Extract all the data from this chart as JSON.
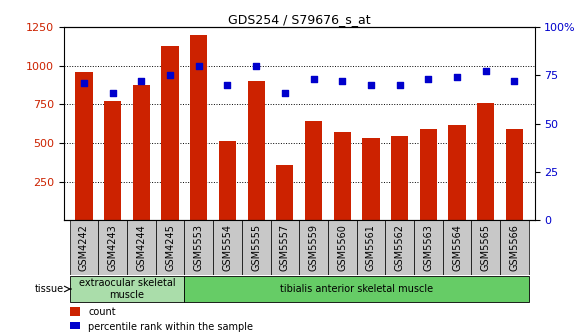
{
  "title": "GDS254 / S79676_s_at",
  "categories": [
    "GSM4242",
    "GSM4243",
    "GSM4244",
    "GSM4245",
    "GSM5553",
    "GSM5554",
    "GSM5555",
    "GSM5557",
    "GSM5559",
    "GSM5560",
    "GSM5561",
    "GSM5562",
    "GSM5563",
    "GSM5564",
    "GSM5565",
    "GSM5566"
  ],
  "counts": [
    960,
    770,
    875,
    1125,
    1200,
    510,
    900,
    360,
    645,
    570,
    530,
    545,
    590,
    615,
    760,
    590
  ],
  "percentiles": [
    71,
    66,
    72,
    75,
    80,
    70,
    80,
    66,
    73,
    72,
    70,
    70,
    73,
    74,
    77,
    72
  ],
  "bar_color": "#cc2200",
  "dot_color": "#0000cc",
  "plot_bg": "#ffffff",
  "xtick_bg": "#c8c8c8",
  "left_ylim": [
    0,
    1250
  ],
  "left_yticks": [
    250,
    500,
    750,
    1000,
    1250
  ],
  "right_ylim": [
    0,
    100
  ],
  "right_yticks": [
    0,
    25,
    50,
    75,
    100
  ],
  "right_yticklabels": [
    "0",
    "25",
    "50",
    "75",
    "100%"
  ],
  "tissue_groups": [
    {
      "label": "extraocular skeletal\nmuscle",
      "start": 0,
      "end": 4,
      "color": "#aaddaa"
    },
    {
      "label": "tibialis anterior skeletal muscle",
      "start": 4,
      "end": 16,
      "color": "#66cc66"
    }
  ],
  "tissue_label": "tissue",
  "legend_items": [
    {
      "label": "count",
      "color": "#cc2200"
    },
    {
      "label": "percentile rank within the sample",
      "color": "#0000cc"
    }
  ],
  "title_fontsize": 9,
  "tick_fontsize": 7,
  "ytick_fontsize": 8
}
